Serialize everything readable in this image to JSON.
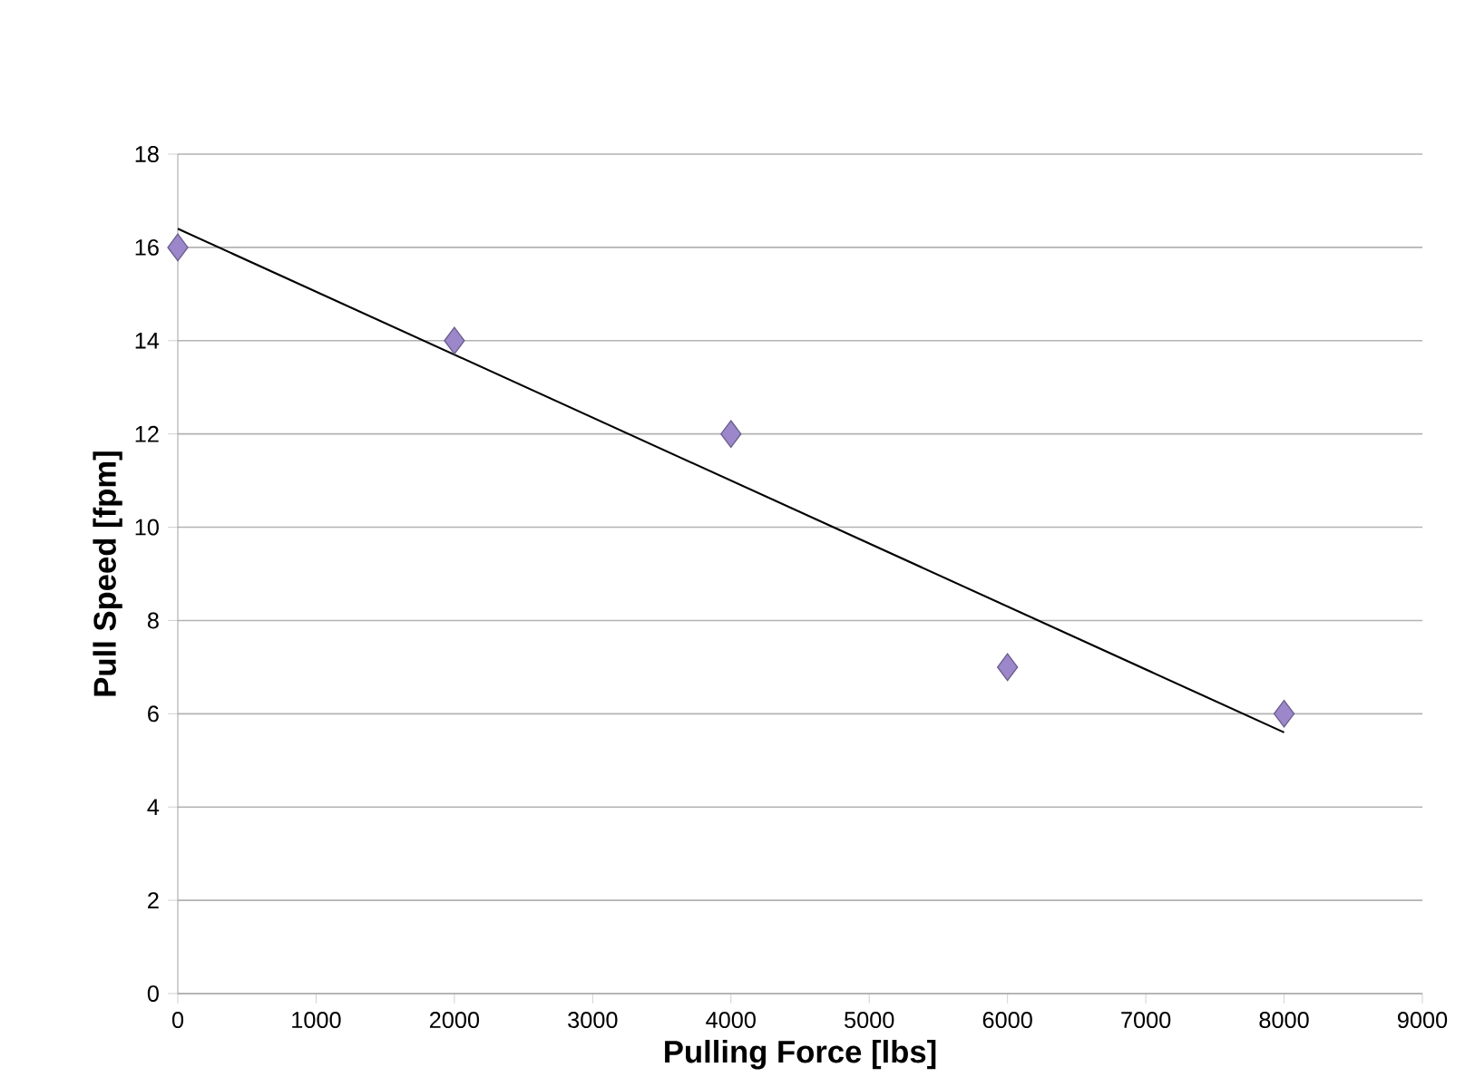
{
  "chart_data": {
    "type": "scatter",
    "xlabel": "Pulling Force [lbs]",
    "ylabel": "Pull Speed [fpm]",
    "xlim": [
      0,
      9000
    ],
    "xticks": [
      0,
      1000,
      2000,
      3000,
      4000,
      5000,
      6000,
      7000,
      8000,
      9000
    ],
    "ylim": [
      0,
      18
    ],
    "yticks": [
      0,
      2,
      4,
      6,
      8,
      10,
      12,
      14,
      16,
      18
    ],
    "grid": "y",
    "series": [
      {
        "color": "#9b87c9",
        "marker": "diamond",
        "x": [
          0,
          2000,
          4000,
          6000,
          8000
        ],
        "values": [
          16,
          14,
          12,
          7,
          6
        ]
      },
      {
        "type": "line",
        "color": "#000000",
        "marker": "none",
        "line_style": "solid",
        "x": [
          0,
          8000
        ],
        "values": [
          16.4,
          5.6
        ]
      }
    ]
  }
}
